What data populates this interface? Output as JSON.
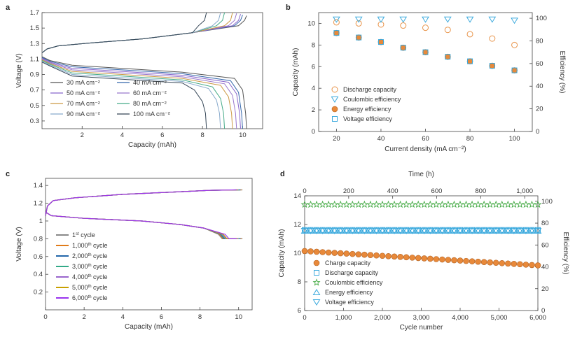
{
  "chart_data": [
    {
      "id": "a",
      "panel_label": "a",
      "type": "line",
      "xlabel": "Capacity (mAh)",
      "ylabel": "Voltage (V)",
      "xlim": [
        0,
        11
      ],
      "ylim": [
        0.2,
        1.7
      ],
      "xticks": [
        2,
        4,
        6,
        8,
        10
      ],
      "yticks": [
        0.3,
        0.5,
        0.7,
        0.9,
        1.1,
        1.3,
        1.5,
        1.7
      ],
      "colors": [
        "#555555",
        "#3366aa",
        "#8866cc",
        "#9977cc",
        "#cc9944",
        "#44aa88",
        "#88aacc",
        "#334455"
      ],
      "series": [
        {
          "name": "30 mA cm⁻²",
          "capacity": 10.2,
          "charge_top": 1.66,
          "discharge_start": 1.13,
          "discharge_plateau": 0.98,
          "discharge_knee": 0.85
        },
        {
          "name": "40 mA cm⁻²",
          "capacity": 10.0,
          "charge_top": 1.67,
          "discharge_start": 1.12,
          "discharge_plateau": 0.96,
          "discharge_knee": 0.82
        },
        {
          "name": "50 mA cm⁻²",
          "capacity": 9.9,
          "charge_top": 1.68,
          "discharge_start": 1.11,
          "discharge_plateau": 0.94,
          "discharge_knee": 0.8
        },
        {
          "name": "60 mA cm⁻²",
          "capacity": 9.7,
          "charge_top": 1.69,
          "discharge_start": 1.1,
          "discharge_plateau": 0.92,
          "discharge_knee": 0.78
        },
        {
          "name": "70 mA cm⁻²",
          "capacity": 9.5,
          "charge_top": 1.7,
          "discharge_start": 1.09,
          "discharge_plateau": 0.9,
          "discharge_knee": 0.76
        },
        {
          "name": "80 mA cm⁻²",
          "capacity": 9.1,
          "charge_top": 1.7,
          "discharge_start": 1.08,
          "discharge_plateau": 0.88,
          "discharge_knee": 0.74
        },
        {
          "name": "90 mA cm⁻²",
          "capacity": 8.9,
          "charge_top": 1.7,
          "discharge_start": 1.07,
          "discharge_plateau": 0.86,
          "discharge_knee": 0.72
        },
        {
          "name": "100 mA cm⁻²",
          "capacity": 8.2,
          "charge_top": 1.7,
          "discharge_start": 1.06,
          "discharge_plateau": 0.84,
          "discharge_knee": 0.7
        }
      ],
      "legend_order": [
        0,
        1,
        2,
        3,
        4,
        5,
        6,
        7
      ]
    },
    {
      "id": "b",
      "panel_label": "b",
      "type": "scatter",
      "xlabel": "Current density (mA cm⁻²)",
      "ylabel": "Capacity (mAh)",
      "ylabel_right": "Efficiency (%)",
      "xlim": [
        12,
        108
      ],
      "ylim": [
        0,
        11
      ],
      "ylim_right": [
        0,
        105
      ],
      "xticks": [
        20,
        40,
        60,
        80,
        100
      ],
      "yticks": [
        0,
        2,
        4,
        6,
        8,
        10
      ],
      "yticks_right": [
        0,
        20,
        40,
        60,
        80,
        100
      ],
      "x": [
        20,
        30,
        40,
        50,
        60,
        70,
        80,
        90,
        100
      ],
      "series": [
        {
          "name": "Discharge capacity",
          "axis": "left",
          "marker": "circle-open",
          "color": "#e8944a",
          "values": [
            10.1,
            10.0,
            9.9,
            9.8,
            9.6,
            9.4,
            9.0,
            8.6,
            8.0
          ]
        },
        {
          "name": "Coulombic efficiency",
          "axis": "right",
          "marker": "triangle-down-open",
          "color": "#3aa9dd",
          "values": [
            99,
            99,
            99,
            99,
            99,
            99,
            99,
            99,
            98
          ]
        },
        {
          "name": "Energy efficiency",
          "axis": "right",
          "marker": "circle-filled",
          "color": "#e8893a",
          "values": [
            87,
            83,
            79,
            74,
            70,
            66,
            62,
            58,
            54
          ]
        },
        {
          "name": "Voltage efficiency",
          "axis": "right",
          "marker": "square-open",
          "color": "#3aa9dd",
          "values": [
            87,
            83,
            79,
            74,
            70,
            66,
            62,
            58,
            54
          ]
        }
      ]
    },
    {
      "id": "c",
      "panel_label": "c",
      "type": "line",
      "xlabel": "Capacity (mAh)",
      "ylabel": "Voltage (V)",
      "xlim": [
        0,
        10.7
      ],
      "ylim": [
        0,
        1.48
      ],
      "xticks": [
        0,
        2,
        4,
        6,
        8,
        10
      ],
      "yticks": [
        0.2,
        0.4,
        0.6,
        0.8,
        1.0,
        1.2,
        1.4
      ],
      "series": [
        {
          "label_main": "1",
          "label_sup": "st",
          "label_rest": " cycle",
          "color": "#888888",
          "capacity": 10.2,
          "end": 8.95
        },
        {
          "label_main": "1,000",
          "label_sup": "th",
          "label_rest": " cycle",
          "color": "#e07b1a",
          "capacity": 10.15,
          "end": 9.0
        },
        {
          "label_main": "2,000",
          "label_sup": "th",
          "label_rest": " cycle",
          "color": "#2266aa",
          "capacity": 10.1,
          "end": 9.05
        },
        {
          "label_main": "3,000",
          "label_sup": "th",
          "label_rest": " cycle",
          "color": "#33aa88",
          "capacity": 10.05,
          "end": 9.1
        },
        {
          "label_main": "4,000",
          "label_sup": "th",
          "label_rest": " cycle",
          "color": "#9966cc",
          "capacity": 10.0,
          "end": 9.15
        },
        {
          "label_main": "5,000",
          "label_sup": "th",
          "label_rest": " cycle",
          "color": "#c8a000",
          "capacity": 9.95,
          "end": 9.2
        },
        {
          "label_main": "6,000",
          "label_sup": "th",
          "label_rest": " cycle",
          "color": "#9933ee",
          "capacity": 9.9,
          "end": 9.3
        }
      ]
    },
    {
      "id": "d",
      "panel_label": "d",
      "type": "scatter",
      "xlabel": "Cycle number",
      "xlabel_top": "Time (h)",
      "ylabel": "Capacity (mAh)",
      "ylabel_right": "Efficiency (%)",
      "xlim": [
        0,
        6000
      ],
      "xlim_top": [
        0,
        1060
      ],
      "ylim": [
        6,
        14
      ],
      "ylim_right": [
        0,
        105
      ],
      "xticks": [
        0,
        1000,
        2000,
        3000,
        4000,
        5000,
        6000
      ],
      "xtick_labels": [
        "0",
        "1,000",
        "2,000",
        "3,000",
        "4,000",
        "5,000",
        "6,000"
      ],
      "xticks_top": [
        0,
        200,
        400,
        600,
        800,
        1000
      ],
      "xtick_labels_top": [
        "0",
        "200",
        "400",
        "600",
        "800",
        "1,000"
      ],
      "yticks": [
        6,
        8,
        10,
        12,
        14
      ],
      "yticks_right": [
        0,
        20,
        40,
        60,
        80,
        100
      ],
      "marker_count": 40,
      "series": [
        {
          "name": "Charge capacity",
          "axis": "left",
          "marker": "circle-filled",
          "color": "#e8893a",
          "start": 10.15,
          "end": 9.15
        },
        {
          "name": "Discharge capacity",
          "axis": "left",
          "marker": "square-open",
          "color": "#3aa9dd",
          "start": 11.62,
          "end": 11.62
        },
        {
          "name": "Coulombic efficiency",
          "axis": "right",
          "marker": "star-open",
          "color": "#44aa44",
          "start": 97,
          "end": 97
        },
        {
          "name": "Energy efficiency",
          "axis": "right",
          "marker": "triangle-up-open",
          "color": "#3aa9dd",
          "start": 73,
          "end": 73
        },
        {
          "name": "Voltage efficiency",
          "axis": "right",
          "marker": "triangle-down-open",
          "color": "#3aa9dd",
          "start": 73,
          "end": 73
        }
      ]
    }
  ]
}
